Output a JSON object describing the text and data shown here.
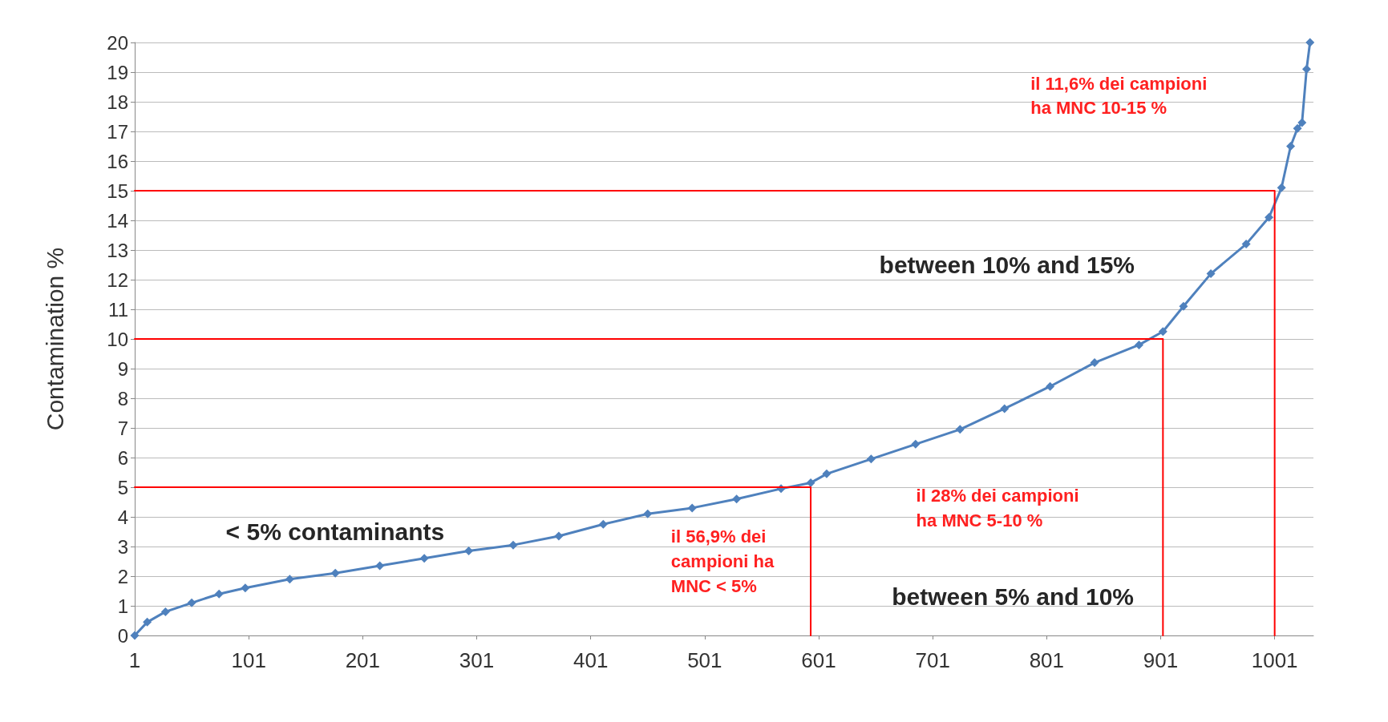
{
  "chart_data": {
    "type": "line",
    "ylabel": "Contamination %",
    "marker": "diamond",
    "grid": "y",
    "xlim": [
      1,
      1035
    ],
    "xticks": [
      1,
      101,
      201,
      301,
      401,
      501,
      601,
      701,
      801,
      901,
      1001
    ],
    "ylim": [
      0,
      20
    ],
    "yticks": [
      0,
      1,
      2,
      3,
      4,
      5,
      6,
      7,
      8,
      9,
      10,
      11,
      12,
      13,
      14,
      15,
      16,
      17,
      18,
      19,
      20
    ],
    "series": [
      {
        "color": "#4f81bd",
        "x": [
          1,
          12,
          28,
          51,
          75,
          98,
          137,
          177,
          216,
          255,
          294,
          333,
          373,
          412,
          451,
          490,
          529,
          568,
          594,
          608,
          647,
          686,
          725,
          764,
          804,
          843,
          882,
          903,
          921,
          945,
          976,
          996,
          1007,
          1015,
          1021,
          1025,
          1029,
          1032
        ],
        "values": [
          0,
          0.45,
          0.8,
          1.1,
          1.4,
          1.6,
          1.9,
          2.1,
          2.35,
          2.6,
          2.85,
          3.05,
          3.35,
          3.75,
          4.1,
          4.3,
          4.6,
          4.95,
          5.15,
          5.45,
          5.95,
          6.45,
          6.95,
          7.65,
          8.4,
          9.2,
          9.8,
          10.25,
          11.1,
          12.2,
          13.2,
          14.1,
          15.1,
          16.5,
          17.1,
          17.3,
          19.1,
          20
        ]
      },
      {
        "type": "line",
        "color": "#ff0000",
        "marker": "none",
        "x": [
          1,
          594,
          594
        ],
        "values": [
          5,
          5,
          0
        ]
      },
      {
        "type": "line",
        "color": "#ff0000",
        "marker": "none",
        "x": [
          1,
          903,
          903
        ],
        "values": [
          10,
          10,
          0
        ]
      },
      {
        "type": "line",
        "color": "#ff0000",
        "marker": "none",
        "x": [
          1,
          1001,
          1001
        ],
        "values": [
          15,
          15,
          0
        ]
      }
    ],
    "annotations": [
      "< 5% contaminants",
      "between 5% and 10%",
      "between 10% and 15%",
      "il 56,9% dei campioni ha MNC < 5%",
      "il 28% dei campioni ha MNC 5-10 %",
      "il 11,6% dei campioni ha MNC 10-15 %"
    ]
  }
}
